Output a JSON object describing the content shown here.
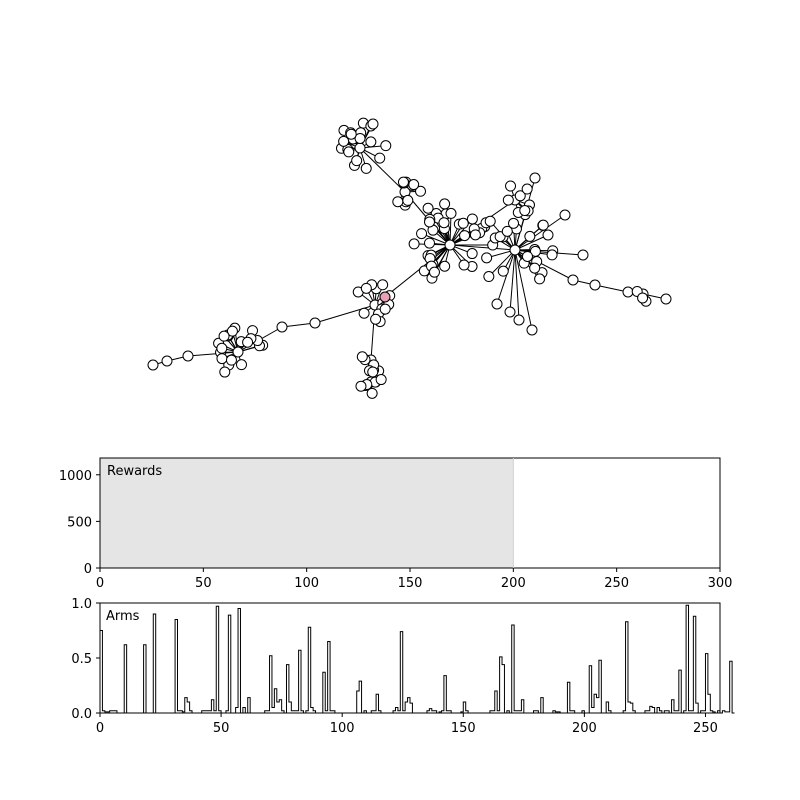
{
  "chart_data": [
    {
      "type": "network",
      "description_visible": "tree-shaped graph of white circular nodes with black outlines connected by black edges; one node highlighted in pink",
      "node_fill": "#ffffff",
      "node_stroke": "#000000",
      "edge_color": "#000000",
      "highlight_color": "#e8a0b4"
    },
    {
      "type": "area",
      "annotation": "Rewards",
      "x": [
        0,
        200
      ],
      "y": [
        1200,
        1200
      ],
      "xlim": [
        0,
        300
      ],
      "ylim": [
        0,
        1180
      ],
      "xticks": [
        0,
        50,
        100,
        150,
        200,
        250,
        300
      ],
      "yticks": [
        0,
        500,
        1000
      ],
      "fill_color": "#e5e5e5",
      "grid": false
    },
    {
      "type": "bar",
      "style": "step-histogram",
      "annotation": "Arms",
      "xlim": [
        0,
        256
      ],
      "ylim": [
        0,
        1.0
      ],
      "xticks": [
        0,
        50,
        100,
        150,
        200,
        250
      ],
      "yticks": [
        0.0,
        0.5,
        1.0
      ],
      "yticklabels": [
        "0.0",
        "0.5",
        "1.0"
      ],
      "grid": false,
      "values": [
        0.75,
        0.02,
        0.01,
        0.01,
        0.02,
        0.02,
        0.02,
        0,
        0,
        0,
        0.62,
        0,
        0,
        0,
        0,
        0,
        0,
        0,
        0.62,
        0,
        0,
        0,
        0.9,
        0,
        0,
        0,
        0,
        0,
        0,
        0,
        0,
        0.85,
        0.02,
        0.02,
        0.01,
        0.14,
        0.1,
        0.02,
        0,
        0,
        0,
        0,
        0.02,
        0.02,
        0.02,
        0.02,
        0.12,
        0.02,
        0.97,
        0.02,
        0,
        0,
        0.02,
        0.89,
        0,
        0,
        0.05,
        0.95,
        0,
        0.05,
        0,
        0.14,
        0,
        0,
        0,
        0,
        0,
        0,
        0.02,
        0.02,
        0.52,
        0.05,
        0.22,
        0.1,
        0.12,
        0.02,
        0,
        0.44,
        0.1,
        0.02,
        0.02,
        0.02,
        0.57,
        0.02,
        0,
        0.02,
        0.78,
        0.05,
        0.02,
        0,
        0,
        0,
        0.37,
        0.02,
        0.65,
        0.02,
        0.02,
        0,
        0,
        0,
        0,
        0,
        0,
        0,
        0,
        0,
        0.2,
        0.29,
        0,
        0.02,
        0,
        0,
        0.02,
        0.02,
        0.17,
        0.02,
        0,
        0,
        0,
        0,
        0,
        0.02,
        0.05,
        0.02,
        0.74,
        0.02,
        0.1,
        0.14,
        0.09,
        0,
        0,
        0,
        0,
        0,
        0,
        0.02,
        0.04,
        0.02,
        0.02,
        0,
        0.01,
        0.02,
        0.34,
        0.02,
        0.02,
        0,
        0,
        0,
        0,
        0.01,
        0.1,
        0.02,
        0,
        0,
        0,
        0,
        0,
        0,
        0,
        0,
        0,
        0.02,
        0.02,
        0.2,
        0.02,
        0.51,
        0.44,
        0,
        0.02,
        0,
        0.8,
        0.02,
        0.02,
        0.02,
        0.12,
        0,
        0,
        0,
        0,
        0.02,
        0.02,
        0,
        0.14,
        0,
        0,
        0,
        0,
        0.02,
        0.01,
        0.01,
        0,
        0,
        0,
        0.28,
        0.02,
        0.02,
        0,
        0,
        0,
        0.02,
        0,
        0,
        0.43,
        0.05,
        0.17,
        0.14,
        0.48,
        0,
        0,
        0.1,
        0.02,
        0,
        0,
        0,
        0,
        0,
        0.02,
        0.83,
        0.1,
        0.09,
        0.02,
        0,
        0,
        0,
        0,
        0.02,
        0.02,
        0.06,
        0.05,
        0,
        0.05,
        0.02,
        0,
        0.02,
        0.02,
        0,
        0.12,
        0.02,
        0.02,
        0.39,
        0,
        0.02,
        0.98,
        0.02,
        0.02,
        0.88,
        0.09,
        0,
        0.02,
        0.02,
        0.54,
        0.17,
        0.02,
        0.01,
        0,
        0.02,
        0,
        0.02,
        0.01,
        0.01,
        0.47,
        0
      ]
    }
  ],
  "labels": {
    "rewards": "Rewards",
    "arms": "Arms"
  }
}
